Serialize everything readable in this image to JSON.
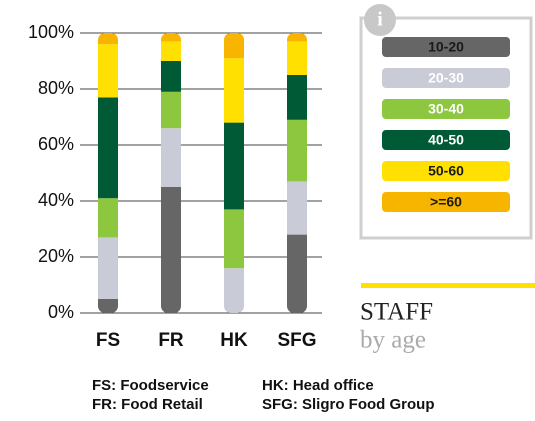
{
  "chart_data": {
    "type": "stacked_bar",
    "title": "STAFF",
    "subtitle": "by age",
    "categories": [
      "FS",
      "FR",
      "HK",
      "SFG"
    ],
    "series": [
      {
        "name": "10-20",
        "color": "#666666",
        "values": [
          5,
          45,
          0,
          28
        ]
      },
      {
        "name": "20-30",
        "color": "#c9cbd6",
        "values": [
          22,
          21,
          16,
          19
        ]
      },
      {
        "name": "30-40",
        "color": "#8dc63f",
        "values": [
          14,
          13,
          21,
          22
        ]
      },
      {
        "name": "40-50",
        "color": "#005a36",
        "values": [
          36,
          11,
          31,
          16
        ]
      },
      {
        "name": "50-60",
        "color": "#ffe000",
        "values": [
          19,
          7,
          23,
          12
        ]
      },
      {
        "name": ">=60",
        "color": "#f7b500",
        "values": [
          4,
          3,
          9,
          3
        ]
      }
    ],
    "ylim": [
      0,
      100
    ],
    "yticks": [
      {
        "value": 0,
        "label": "0%"
      },
      {
        "value": 20,
        "label": "20%"
      },
      {
        "value": 40,
        "label": "40%"
      },
      {
        "value": 60,
        "label": "60%"
      },
      {
        "value": 80,
        "label": "80%"
      },
      {
        "value": 100,
        "label": "100%"
      }
    ],
    "grid": true,
    "notes": [
      "FS: Foodservice",
      "FR: Food Retail",
      "HK: Head office",
      "SFG: Sligro Food Group"
    ]
  }
}
